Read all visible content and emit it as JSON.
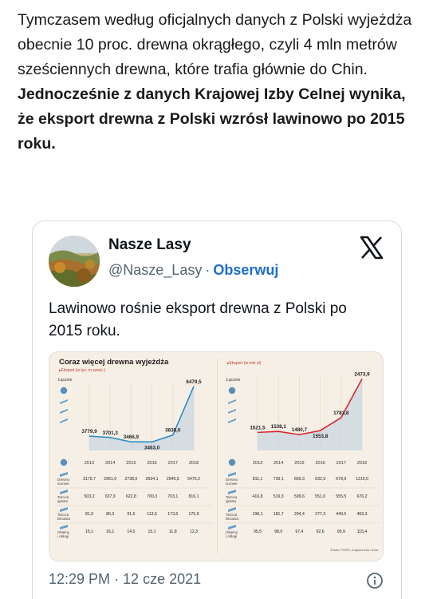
{
  "article": {
    "normal_text": "Tymczasem według oficjalnych danych z Polski wyjeżdża obecnie 10 proc. drewna okrągłego, czyli 4 mln metrów sześciennych drewna, które trafia głównie do Chin. ",
    "bold_text": "Jednocześnie z danych Krajowej Izby Celnej wynika, że eksport drewna z Polski wzrósł lawinowo po 2015 roku."
  },
  "tweet": {
    "author_name": "Nasze Lasy",
    "handle": "@Nasze_Lasy",
    "separator": "·",
    "follow_label": "Obserwuj",
    "text": "Lawinowo rośnie eksport drewna z Polski po 2015 roku.",
    "timestamp": "12:29 PM · 12 cze 2021"
  },
  "icons": {
    "x_logo": "x-logo-icon",
    "info": "info-icon"
  },
  "colors": {
    "follow": "#1d6fc9",
    "left_line": "#2a8fc1",
    "right_line": "#d8262b",
    "area_fill": "#b9cde0",
    "panel_bg": "#f6efe6"
  },
  "chart_data": [
    {
      "type": "line",
      "title": "Coraz więcej drewna wyjeżdża",
      "subtitle": "Eksport (w tys. m sześc.)",
      "series_label": "Łącznie",
      "x": [
        "2013",
        "2014",
        "2015",
        "2016",
        "2017",
        "2018"
      ],
      "series": [
        {
          "name": "Łącznie",
          "values": [
            3779.9,
            3701.3,
            3466.9,
            3463.0,
            3838.0,
            6479.5
          ]
        }
      ],
      "value_labels": [
        "3779,9",
        "3701,3",
        "3466,9",
        "3463,0",
        "3838,0",
        "6479,5"
      ],
      "ylim": [
        3000,
        6600
      ],
      "table": [
        {
          "label": "Drewno surowe",
          "values": [
            "3179,7",
            "2961,0",
            "2738,0",
            "2634,1",
            "2949,5",
            "5475,2"
          ]
        },
        {
          "label": "Tarcica iglasta",
          "values": [
            "503,2",
            "637,9",
            "622,8",
            "700,3",
            "703,1",
            "816,1"
          ]
        },
        {
          "label": "Tarcica liściasta",
          "values": [
            "81,9",
            "86,3",
            "91,6",
            "113,5",
            "173,6",
            "175,9"
          ]
        },
        {
          "label": "Okleiny i obłogi",
          "values": [
            "15,1",
            "16,1",
            "14,5",
            "15,1",
            "11,8",
            "12,3"
          ]
        }
      ]
    },
    {
      "type": "line",
      "title": "",
      "subtitle": "Eksport (w mln zł)",
      "series_label": "Łącznie",
      "x": [
        "2013",
        "2014",
        "2015",
        "2016",
        "2017",
        "2018"
      ],
      "series": [
        {
          "name": "Łącznie",
          "values": [
            1521.5,
            1538.1,
            1480.7,
            1553.8,
            1783.8,
            2473.9
          ]
        }
      ],
      "value_labels": [
        "1521,5",
        "1538,1",
        "1480,7",
        "1553,8",
        "1783,8",
        "2473,9"
      ],
      "ylim": [
        1200,
        2550
      ],
      "table": [
        {
          "label": "Drewno surowe",
          "values": [
            "811,1",
            "739,1",
            "669,3",
            "632,9",
            "678,9",
            "1219,0"
          ]
        },
        {
          "label": "Tarcica iglasta",
          "values": [
            "416,8",
            "519,3",
            "509,6",
            "551,0",
            "555,5",
            "676,2"
          ]
        },
        {
          "label": "Tarcica liściasta",
          "values": [
            "198,1",
            "181,7",
            "204,4",
            "277,3",
            "449,5",
            "463,3"
          ]
        },
        {
          "label": "Okleiny i obłogi",
          "values": [
            "95,5",
            "98,0",
            "97,4",
            "92,6",
            "99,9",
            "115,4"
          ]
        }
      ],
      "source": "Źródło: PIGPD, Krajowa Izba Celna"
    }
  ]
}
